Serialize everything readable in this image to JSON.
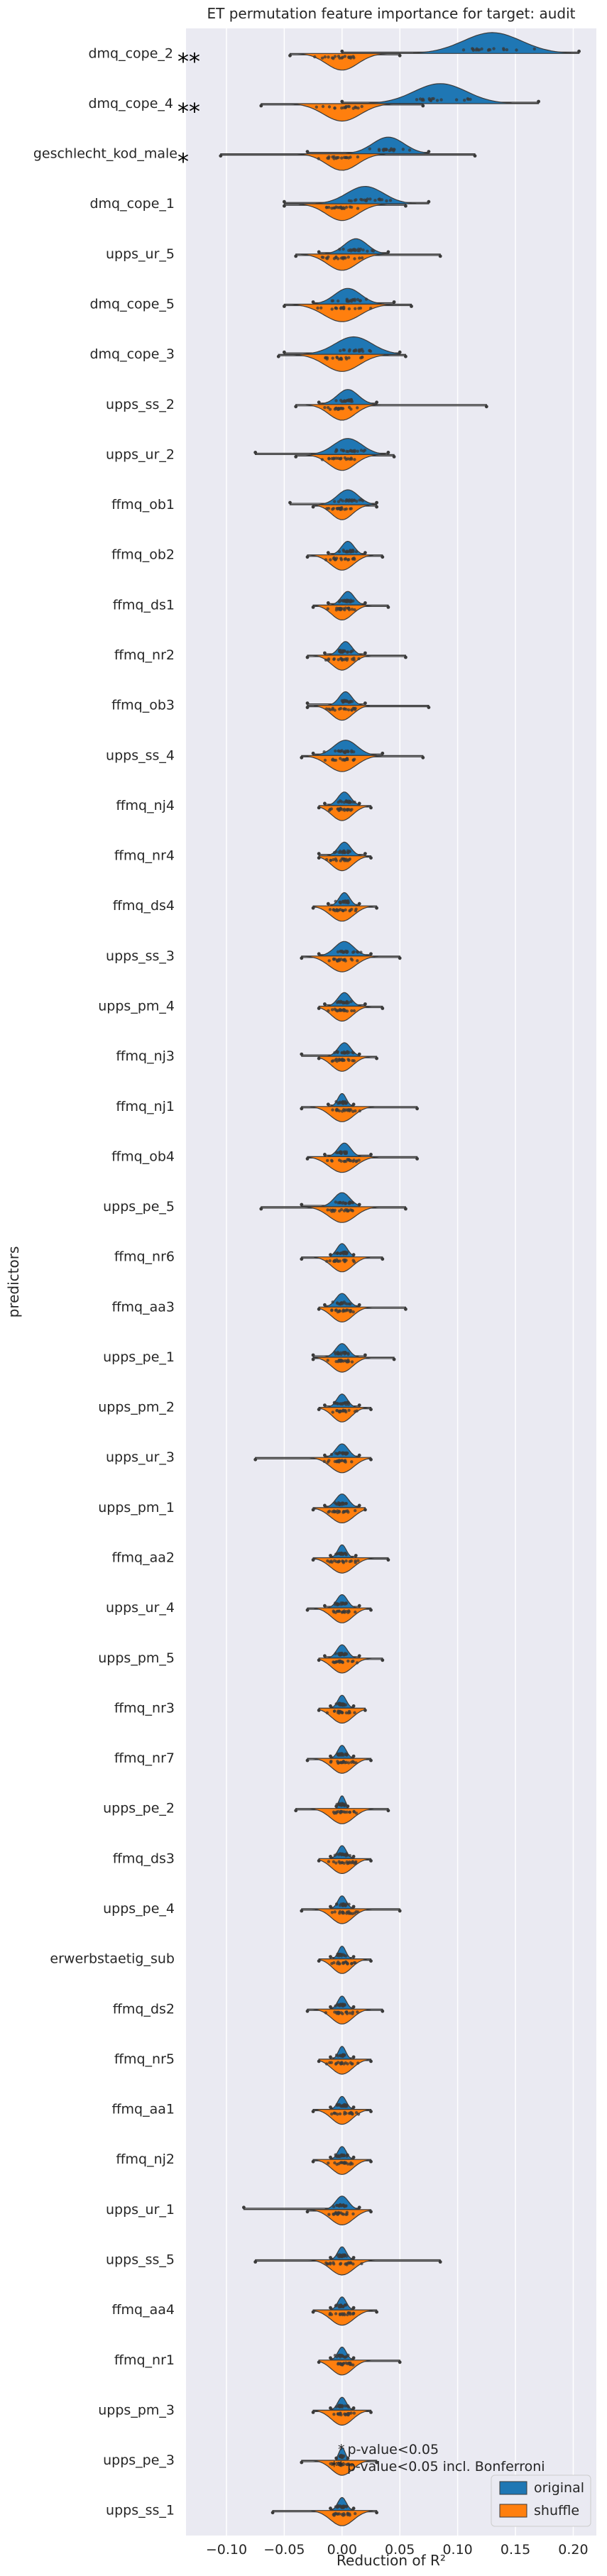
{
  "chart_data": {
    "type": "violin",
    "title": "ET permutation feature importance for target: audit",
    "xlabel": "Reduction of R²",
    "ylabel": "predictors",
    "xlim": [
      -0.135,
      0.22
    ],
    "xticks": [
      -0.1,
      -0.05,
      0.0,
      0.05,
      0.1,
      0.15,
      0.2
    ],
    "xtick_labels": [
      "−0.10",
      "−0.05",
      "0.00",
      "0.05",
      "0.10",
      "0.15",
      "0.20"
    ],
    "grid": true,
    "legend_position": "bottom-right",
    "colors": {
      "original": "#1f77b4",
      "shuffle": "#ff7f0e",
      "background": "#eaeaf2"
    },
    "series": [
      {
        "name": "original",
        "color": "#1f77b4"
      },
      {
        "name": "shuffle",
        "color": "#ff7f0e"
      }
    ],
    "annotations": [
      "p-value<0.05",
      "p-value<0.05 incl. Bonferroni"
    ],
    "predictors": [
      {
        "name": "dmq_cope_2",
        "sig": "**",
        "orig_center": 0.13,
        "orig_spread": 0.055,
        "orig_range": [
          0.0,
          0.205
        ],
        "shuf_center": 0.0,
        "shuf_spread": 0.03,
        "shuf_range": [
          -0.045,
          0.05
        ]
      },
      {
        "name": "dmq_cope_4",
        "sig": "**",
        "orig_center": 0.085,
        "orig_spread": 0.05,
        "orig_range": [
          0.0,
          0.17
        ],
        "shuf_center": 0.0,
        "shuf_spread": 0.035,
        "shuf_range": [
          -0.07,
          0.07
        ]
      },
      {
        "name": "geschlecht_kod_male",
        "sig": "*",
        "orig_center": 0.04,
        "orig_spread": 0.03,
        "orig_range": [
          -0.03,
          0.075
        ],
        "shuf_center": 0.0,
        "shuf_spread": 0.03,
        "shuf_range": [
          -0.105,
          0.115
        ]
      },
      {
        "name": "dmq_cope_1",
        "sig": "",
        "orig_center": 0.02,
        "orig_spread": 0.035,
        "orig_range": [
          -0.05,
          0.075
        ],
        "shuf_center": 0.0,
        "shuf_spread": 0.03,
        "shuf_range": [
          -0.05,
          0.055
        ]
      },
      {
        "name": "upps_ur_5",
        "sig": "",
        "orig_center": 0.012,
        "orig_spread": 0.022,
        "orig_range": [
          -0.02,
          0.04
        ],
        "shuf_center": 0.0,
        "shuf_spread": 0.028,
        "shuf_range": [
          -0.04,
          0.085
        ]
      },
      {
        "name": "dmq_cope_5",
        "sig": "",
        "orig_center": 0.005,
        "orig_spread": 0.025,
        "orig_range": [
          -0.025,
          0.045
        ],
        "shuf_center": 0.0,
        "shuf_spread": 0.035,
        "shuf_range": [
          -0.05,
          0.06
        ]
      },
      {
        "name": "dmq_cope_3",
        "sig": "",
        "orig_center": 0.01,
        "orig_spread": 0.035,
        "orig_range": [
          -0.05,
          0.05
        ],
        "shuf_center": 0.0,
        "shuf_spread": 0.033,
        "shuf_range": [
          -0.055,
          0.055
        ]
      },
      {
        "name": "upps_ss_2",
        "sig": "",
        "orig_center": 0.005,
        "orig_spread": 0.02,
        "orig_range": [
          -0.02,
          0.03
        ],
        "shuf_center": 0.0,
        "shuf_spread": 0.025,
        "shuf_range": [
          -0.04,
          0.125
        ]
      },
      {
        "name": "upps_ur_2",
        "sig": "",
        "orig_center": 0.005,
        "orig_spread": 0.027,
        "orig_range": [
          -0.075,
          0.04
        ],
        "shuf_center": 0.0,
        "shuf_spread": 0.025,
        "shuf_range": [
          -0.04,
          0.045
        ]
      },
      {
        "name": "ffmq_ob1",
        "sig": "",
        "orig_center": 0.005,
        "orig_spread": 0.02,
        "orig_range": [
          -0.045,
          0.03
        ],
        "shuf_center": 0.0,
        "shuf_spread": 0.02,
        "shuf_range": [
          -0.025,
          0.03
        ]
      },
      {
        "name": "ffmq_ob2",
        "sig": "",
        "orig_center": 0.005,
        "orig_spread": 0.012,
        "orig_range": [
          -0.012,
          0.02
        ],
        "shuf_center": 0.0,
        "shuf_spread": 0.022,
        "shuf_range": [
          -0.03,
          0.035
        ]
      },
      {
        "name": "ffmq_ds1",
        "sig": "",
        "orig_center": 0.005,
        "orig_spread": 0.012,
        "orig_range": [
          -0.012,
          0.02
        ],
        "shuf_center": 0.0,
        "shuf_spread": 0.02,
        "shuf_range": [
          -0.025,
          0.04
        ]
      },
      {
        "name": "ffmq_nr2",
        "sig": "",
        "orig_center": 0.003,
        "orig_spread": 0.012,
        "orig_range": [
          -0.015,
          0.02
        ],
        "shuf_center": 0.0,
        "shuf_spread": 0.02,
        "shuf_range": [
          -0.03,
          0.055
        ]
      },
      {
        "name": "ffmq_ob3",
        "sig": "",
        "orig_center": 0.003,
        "orig_spread": 0.012,
        "orig_range": [
          -0.03,
          0.02
        ],
        "shuf_center": 0.0,
        "shuf_spread": 0.02,
        "shuf_range": [
          -0.03,
          0.075
        ]
      },
      {
        "name": "upps_ss_4",
        "sig": "",
        "orig_center": 0.003,
        "orig_spread": 0.022,
        "orig_range": [
          -0.025,
          0.035
        ],
        "shuf_center": 0.0,
        "shuf_spread": 0.027,
        "shuf_range": [
          -0.035,
          0.07
        ]
      },
      {
        "name": "ffmq_nj4",
        "sig": "",
        "orig_center": 0.002,
        "orig_spread": 0.012,
        "orig_range": [
          -0.015,
          0.015
        ],
        "shuf_center": 0.0,
        "shuf_spread": 0.02,
        "shuf_range": [
          -0.02,
          0.025
        ]
      },
      {
        "name": "ffmq_nr4",
        "sig": "",
        "orig_center": 0.002,
        "orig_spread": 0.012,
        "orig_range": [
          -0.02,
          0.02
        ],
        "shuf_center": 0.0,
        "shuf_spread": 0.02,
        "shuf_range": [
          -0.02,
          0.025
        ]
      },
      {
        "name": "ffmq_ds4",
        "sig": "",
        "orig_center": 0.002,
        "orig_spread": 0.01,
        "orig_range": [
          -0.012,
          0.015
        ],
        "shuf_center": 0.0,
        "shuf_spread": 0.022,
        "shuf_range": [
          -0.025,
          0.03
        ]
      },
      {
        "name": "upps_ss_3",
        "sig": "",
        "orig_center": 0.002,
        "orig_spread": 0.018,
        "orig_range": [
          -0.02,
          0.025
        ],
        "shuf_center": 0.0,
        "shuf_spread": 0.025,
        "shuf_range": [
          -0.035,
          0.05
        ]
      },
      {
        "name": "upps_pm_4",
        "sig": "",
        "orig_center": 0.002,
        "orig_spread": 0.012,
        "orig_range": [
          -0.015,
          0.02
        ],
        "shuf_center": 0.0,
        "shuf_spread": 0.02,
        "shuf_range": [
          -0.02,
          0.035
        ]
      },
      {
        "name": "ffmq_nj3",
        "sig": "",
        "orig_center": 0.002,
        "orig_spread": 0.012,
        "orig_range": [
          -0.035,
          0.015
        ],
        "shuf_center": 0.0,
        "shuf_spread": 0.02,
        "shuf_range": [
          -0.02,
          0.03
        ]
      },
      {
        "name": "ffmq_nj1",
        "sig": "",
        "orig_center": 0.0,
        "orig_spread": 0.008,
        "orig_range": [
          -0.012,
          0.01
        ],
        "shuf_center": 0.0,
        "shuf_spread": 0.022,
        "shuf_range": [
          -0.035,
          0.065
        ]
      },
      {
        "name": "ffmq_ob4",
        "sig": "",
        "orig_center": 0.002,
        "orig_spread": 0.012,
        "orig_range": [
          -0.015,
          0.025
        ],
        "shuf_center": 0.0,
        "shuf_spread": 0.025,
        "shuf_range": [
          -0.03,
          0.065
        ]
      },
      {
        "name": "upps_pe_5",
        "sig": "",
        "orig_center": 0.0,
        "orig_spread": 0.015,
        "orig_range": [
          -0.035,
          0.015
        ],
        "shuf_center": 0.0,
        "shuf_spread": 0.025,
        "shuf_range": [
          -0.07,
          0.055
        ]
      },
      {
        "name": "ffmq_nr6",
        "sig": "",
        "orig_center": 0.0,
        "orig_spread": 0.01,
        "orig_range": [
          -0.01,
          0.01
        ],
        "shuf_center": 0.0,
        "shuf_spread": 0.02,
        "shuf_range": [
          -0.035,
          0.035
        ]
      },
      {
        "name": "ffmq_aa3",
        "sig": "",
        "orig_center": 0.0,
        "orig_spread": 0.012,
        "orig_range": [
          -0.015,
          0.015
        ],
        "shuf_center": 0.0,
        "shuf_spread": 0.02,
        "shuf_range": [
          -0.02,
          0.055
        ]
      },
      {
        "name": "upps_pe_1",
        "sig": "",
        "orig_center": 0.0,
        "orig_spread": 0.012,
        "orig_range": [
          -0.025,
          0.02
        ],
        "shuf_center": 0.0,
        "shuf_spread": 0.02,
        "shuf_range": [
          -0.025,
          0.045
        ]
      },
      {
        "name": "upps_pm_2",
        "sig": "",
        "orig_center": 0.0,
        "orig_spread": 0.01,
        "orig_range": [
          -0.015,
          0.015
        ],
        "shuf_center": 0.0,
        "shuf_spread": 0.018,
        "shuf_range": [
          -0.02,
          0.025
        ]
      },
      {
        "name": "upps_ur_3",
        "sig": "",
        "orig_center": 0.0,
        "orig_spread": 0.012,
        "orig_range": [
          -0.015,
          0.015
        ],
        "shuf_center": 0.0,
        "shuf_spread": 0.022,
        "shuf_range": [
          -0.075,
          0.025
        ]
      },
      {
        "name": "upps_pm_1",
        "sig": "",
        "orig_center": 0.0,
        "orig_spread": 0.012,
        "orig_range": [
          -0.015,
          0.015
        ],
        "shuf_center": 0.0,
        "shuf_spread": 0.022,
        "shuf_range": [
          -0.025,
          0.02
        ]
      },
      {
        "name": "ffmq_aa2",
        "sig": "",
        "orig_center": 0.0,
        "orig_spread": 0.008,
        "orig_range": [
          -0.01,
          0.012
        ],
        "shuf_center": 0.0,
        "shuf_spread": 0.022,
        "shuf_range": [
          -0.025,
          0.04
        ]
      },
      {
        "name": "upps_ur_4",
        "sig": "",
        "orig_center": 0.0,
        "orig_spread": 0.01,
        "orig_range": [
          -0.015,
          0.015
        ],
        "shuf_center": 0.0,
        "shuf_spread": 0.02,
        "shuf_range": [
          -0.03,
          0.025
        ]
      },
      {
        "name": "upps_pm_5",
        "sig": "",
        "orig_center": 0.0,
        "orig_spread": 0.01,
        "orig_range": [
          -0.015,
          0.015
        ],
        "shuf_center": 0.0,
        "shuf_spread": 0.02,
        "shuf_range": [
          -0.02,
          0.035
        ]
      },
      {
        "name": "ffmq_nr3",
        "sig": "",
        "orig_center": 0.0,
        "orig_spread": 0.008,
        "orig_range": [
          -0.01,
          0.01
        ],
        "shuf_center": 0.0,
        "shuf_spread": 0.02,
        "shuf_range": [
          -0.02,
          0.02
        ]
      },
      {
        "name": "ffmq_nr7",
        "sig": "",
        "orig_center": 0.0,
        "orig_spread": 0.008,
        "orig_range": [
          -0.01,
          0.01
        ],
        "shuf_center": 0.0,
        "shuf_spread": 0.02,
        "shuf_range": [
          -0.03,
          0.025
        ]
      },
      {
        "name": "upps_pe_2",
        "sig": "",
        "orig_center": 0.0,
        "orig_spread": 0.006,
        "orig_range": [
          -0.005,
          0.005
        ],
        "shuf_center": 0.0,
        "shuf_spread": 0.022,
        "shuf_range": [
          -0.04,
          0.04
        ]
      },
      {
        "name": "ffmq_ds3",
        "sig": "",
        "orig_center": 0.0,
        "orig_spread": 0.008,
        "orig_range": [
          -0.01,
          0.01
        ],
        "shuf_center": 0.0,
        "shuf_spread": 0.02,
        "shuf_range": [
          -0.02,
          0.025
        ]
      },
      {
        "name": "upps_pe_4",
        "sig": "",
        "orig_center": 0.0,
        "orig_spread": 0.008,
        "orig_range": [
          -0.01,
          0.01
        ],
        "shuf_center": 0.0,
        "shuf_spread": 0.02,
        "shuf_range": [
          -0.035,
          0.05
        ]
      },
      {
        "name": "erwerbstaetig_sub",
        "sig": "",
        "orig_center": 0.0,
        "orig_spread": 0.007,
        "orig_range": [
          -0.01,
          0.01
        ],
        "shuf_center": 0.0,
        "shuf_spread": 0.018,
        "shuf_range": [
          -0.02,
          0.025
        ]
      },
      {
        "name": "ffmq_ds2",
        "sig": "",
        "orig_center": 0.0,
        "orig_spread": 0.008,
        "orig_range": [
          -0.01,
          0.01
        ],
        "shuf_center": 0.0,
        "shuf_spread": 0.02,
        "shuf_range": [
          -0.03,
          0.035
        ]
      },
      {
        "name": "ffmq_nr5",
        "sig": "",
        "orig_center": 0.0,
        "orig_spread": 0.007,
        "orig_range": [
          -0.01,
          0.01
        ],
        "shuf_center": 0.0,
        "shuf_spread": 0.02,
        "shuf_range": [
          -0.02,
          0.025
        ]
      },
      {
        "name": "ffmq_aa1",
        "sig": "",
        "orig_center": 0.0,
        "orig_spread": 0.008,
        "orig_range": [
          -0.01,
          0.01
        ],
        "shuf_center": 0.0,
        "shuf_spread": 0.02,
        "shuf_range": [
          -0.025,
          0.025
        ]
      },
      {
        "name": "ffmq_nj2",
        "sig": "",
        "orig_center": 0.0,
        "orig_spread": 0.008,
        "orig_range": [
          -0.01,
          0.01
        ],
        "shuf_center": 0.0,
        "shuf_spread": 0.02,
        "shuf_range": [
          -0.025,
          0.025
        ]
      },
      {
        "name": "upps_ur_1",
        "sig": "",
        "orig_center": 0.0,
        "orig_spread": 0.012,
        "orig_range": [
          -0.085,
          0.015
        ],
        "shuf_center": 0.0,
        "shuf_spread": 0.022,
        "shuf_range": [
          -0.03,
          0.025
        ]
      },
      {
        "name": "upps_ss_5",
        "sig": "",
        "orig_center": 0.0,
        "orig_spread": 0.008,
        "orig_range": [
          -0.01,
          0.01
        ],
        "shuf_center": 0.0,
        "shuf_spread": 0.022,
        "shuf_range": [
          -0.075,
          0.085
        ]
      },
      {
        "name": "ffmq_aa4",
        "sig": "",
        "orig_center": 0.0,
        "orig_spread": 0.008,
        "orig_range": [
          -0.01,
          0.01
        ],
        "shuf_center": 0.0,
        "shuf_spread": 0.022,
        "shuf_range": [
          -0.025,
          0.03
        ]
      },
      {
        "name": "ffmq_nr1",
        "sig": "",
        "orig_center": 0.0,
        "orig_spread": 0.008,
        "orig_range": [
          -0.01,
          0.01
        ],
        "shuf_center": 0.0,
        "shuf_spread": 0.02,
        "shuf_range": [
          -0.02,
          0.05
        ]
      },
      {
        "name": "upps_pm_3",
        "sig": "",
        "orig_center": 0.0,
        "orig_spread": 0.008,
        "orig_range": [
          -0.01,
          0.01
        ],
        "shuf_center": 0.0,
        "shuf_spread": 0.02,
        "shuf_range": [
          -0.025,
          0.025
        ]
      },
      {
        "name": "upps_pe_3",
        "sig": "",
        "orig_center": 0.0,
        "orig_spread": 0.006,
        "orig_range": [
          -0.005,
          0.005
        ],
        "shuf_center": 0.0,
        "shuf_spread": 0.02,
        "shuf_range": [
          -0.035,
          0.03
        ]
      },
      {
        "name": "upps_ss_1",
        "sig": "",
        "orig_center": 0.0,
        "orig_spread": 0.008,
        "orig_range": [
          -0.01,
          0.01
        ],
        "shuf_center": 0.0,
        "shuf_spread": 0.022,
        "shuf_range": [
          -0.06,
          0.03
        ]
      }
    ]
  },
  "legend": {
    "items": [
      {
        "label": "original",
        "color": "#1f77b4"
      },
      {
        "label": "shuffle",
        "color": "#ff7f0e"
      }
    ],
    "annotations": [
      {
        "symbol": "*",
        "label": "p-value<0.05"
      },
      {
        "symbol": "**",
        "label": "p-value<0.05 incl. Bonferroni"
      }
    ]
  }
}
